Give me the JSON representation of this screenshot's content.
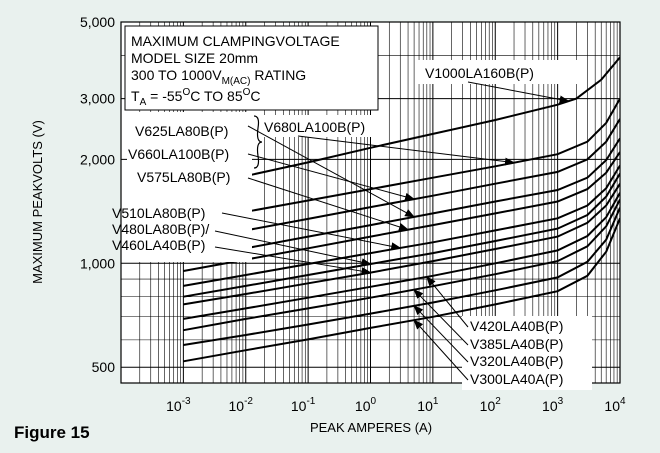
{
  "figure_label": "Figure 15",
  "chart_data": {
    "type": "line",
    "scale": {
      "x": "log",
      "y": "log"
    },
    "xlabel": "PEAK AMPERES (A)",
    "ylabel": "MAXIMUM PEAKVOLTS (V)",
    "xlim": [
      0.0001,
      10000
    ],
    "ylim": [
      450,
      5000
    ],
    "x_ticks": [
      {
        "value": 0.001,
        "base": "10",
        "exp": "-3"
      },
      {
        "value": 0.01,
        "base": "10",
        "exp": "-2"
      },
      {
        "value": 0.1,
        "base": "10",
        "exp": "-1"
      },
      {
        "value": 1,
        "base": "10",
        "exp": "0"
      },
      {
        "value": 10,
        "base": "10",
        "exp": "1"
      },
      {
        "value": 100,
        "base": "10",
        "exp": "2"
      },
      {
        "value": 1000,
        "base": "10",
        "exp": "3"
      },
      {
        "value": 10000,
        "base": "10",
        "exp": "4"
      }
    ],
    "y_ticks": [
      {
        "value": 500,
        "label": "500"
      },
      {
        "value": 1000,
        "label": "1,000"
      },
      {
        "value": 2000,
        "label": "2,000"
      },
      {
        "value": 3000,
        "label": "3,000"
      },
      {
        "value": 5000,
        "label": "5,000"
      }
    ],
    "grid": true,
    "info_box": {
      "line1": "MAXIMUM CLAMPINGVOLTAGE",
      "line2": "MODEL SIZE 20mm",
      "line3_a": "300 TO 1000V",
      "line3_sub": "M(AC)",
      "line3_b": " RATING",
      "line4_a": "T",
      "line4_sub": "A",
      "line4_b": " = -55",
      "line4_sup1": "O",
      "line4_c": "C TO 85",
      "line4_sup2": "O",
      "line4_d": "C"
    },
    "series": [
      {
        "name": "V1000LA160B(P)",
        "x": [
          0.001,
          0.01,
          0.1,
          1,
          10,
          100,
          1000,
          2000,
          5000,
          10000
        ],
        "y": [
          1620,
          1790,
          1960,
          2160,
          2370,
          2600,
          2880,
          3000,
          3400,
          3950
        ]
      },
      {
        "name": "V680LA100B(P)",
        "x": [
          0.001,
          0.01,
          0.1,
          1,
          10,
          100,
          1000,
          3000,
          6000,
          10000
        ],
        "y": [
          1300,
          1410,
          1520,
          1640,
          1770,
          1910,
          2070,
          2250,
          2550,
          3000
        ]
      },
      {
        "name": "V660LA100B(P)",
        "x": [
          0.001,
          0.01,
          0.1,
          1,
          10,
          100,
          1000,
          3000,
          6000,
          10000
        ],
        "y": [
          1150,
          1245,
          1345,
          1455,
          1570,
          1700,
          1840,
          2000,
          2250,
          2620
        ]
      },
      {
        "name": "V625LA80B(P)",
        "x": [
          0.001,
          0.01,
          0.1,
          1,
          10,
          100,
          1000,
          3000,
          6000,
          10000
        ],
        "y": [
          1020,
          1105,
          1195,
          1290,
          1395,
          1510,
          1630,
          1770,
          1990,
          2300
        ]
      },
      {
        "name": "V575LA80B(P)",
        "x": [
          0.001,
          0.01,
          0.1,
          1,
          10,
          100,
          1000,
          3000,
          6000,
          10000
        ],
        "y": [
          950,
          1025,
          1105,
          1195,
          1290,
          1395,
          1510,
          1640,
          1830,
          2100
        ]
      },
      {
        "name": "V510LA80B(P)",
        "x": [
          0.001,
          0.01,
          0.1,
          1,
          10,
          100,
          1000,
          3000,
          6000,
          10000
        ],
        "y": [
          860,
          925,
          995,
          1070,
          1150,
          1245,
          1350,
          1470,
          1650,
          1920
        ]
      },
      {
        "name": "V480LA80B(P)",
        "x": [
          0.001,
          0.01,
          0.1,
          1,
          10,
          100,
          1000,
          3000,
          6000,
          10000
        ],
        "y": [
          800,
          860,
          925,
          995,
          1070,
          1160,
          1260,
          1380,
          1560,
          1820
        ]
      },
      {
        "name": "V460LA40B(P)",
        "x": [
          0.001,
          0.01,
          0.1,
          1,
          10,
          100,
          1000,
          3000,
          6000,
          10000
        ],
        "y": [
          760,
          815,
          875,
          940,
          1015,
          1100,
          1195,
          1310,
          1470,
          1700
        ]
      },
      {
        "name": "V420LA40B(P)",
        "x": [
          0.001,
          0.01,
          0.1,
          1,
          10,
          100,
          1000,
          3000,
          6000,
          10000
        ],
        "y": [
          690,
          740,
          795,
          855,
          920,
          1000,
          1090,
          1200,
          1360,
          1600
        ]
      },
      {
        "name": "V385LA40B(P)",
        "x": [
          0.001,
          0.01,
          0.1,
          1,
          10,
          100,
          1000,
          3000,
          6000,
          10000
        ],
        "y": [
          640,
          690,
          740,
          795,
          858,
          930,
          1015,
          1120,
          1280,
          1530
        ]
      },
      {
        "name": "V320LA40B(P)",
        "x": [
          0.001,
          0.01,
          0.1,
          1,
          10,
          100,
          1000,
          3000,
          6000,
          10000
        ],
        "y": [
          580,
          620,
          665,
          715,
          770,
          835,
          910,
          1010,
          1170,
          1450
        ]
      },
      {
        "name": "V300LA40A(P)",
        "x": [
          0.001,
          0.01,
          0.1,
          1,
          10,
          100,
          1000,
          3000,
          6000,
          10000
        ],
        "y": [
          520,
          560,
          602,
          650,
          700,
          760,
          830,
          920,
          1080,
          1350
        ]
      }
    ],
    "annotations": [
      {
        "text": "V1000LA160B(P)",
        "series": 0,
        "point_x": 1500
      },
      {
        "text": "V680LA100B(P)",
        "series": 1,
        "point_x": 200
      },
      {
        "text": "V625LA80B(P)",
        "series": 3,
        "point_x": 5
      },
      {
        "text": "V660LA100B(P)",
        "series": 2,
        "point_x": 5
      },
      {
        "text": "V575LA80B(P)",
        "series": 4,
        "point_x": 4
      },
      {
        "text": "V510LA80B(P)",
        "series": 5,
        "point_x": 3
      },
      {
        "text": "V480LA80B(P)/",
        "series": 6,
        "point_x": 1
      },
      {
        "text": "V460LA40B(P)",
        "series": 7,
        "point_x": 1
      },
      {
        "text": "V420LA40B(P)",
        "series": 8,
        "point_x": 8
      },
      {
        "text": "V385LA40B(P)",
        "series": 9,
        "point_x": 5
      },
      {
        "text": "V320LA40B(P)",
        "series": 10,
        "point_x": 5
      },
      {
        "text": "V300LA40A(P)",
        "series": 11,
        "point_x": 5
      }
    ]
  }
}
